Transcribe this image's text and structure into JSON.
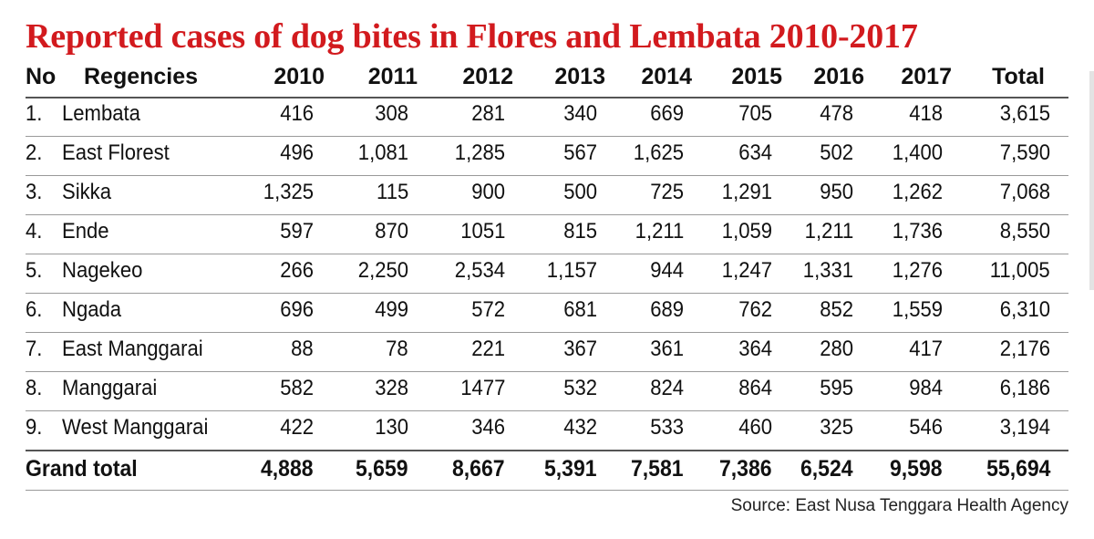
{
  "title": "Reported cases of dog bites in Flores and Lembata 2010-2017",
  "headers": [
    "No",
    "Regencies",
    "2010",
    "2011",
    "2012",
    "2013",
    "2014",
    "2015",
    "2016",
    "2017",
    "Total"
  ],
  "rows": [
    [
      "1.",
      "Lembata",
      "416",
      "308",
      "281",
      "340",
      "669",
      "705",
      "478",
      "418",
      "3,615"
    ],
    [
      "2.",
      "East Florest",
      "496",
      "1,081",
      "1,285",
      "567",
      "1,625",
      "634",
      "502",
      "1,400",
      "7,590"
    ],
    [
      "3.",
      "Sikka",
      "1,325",
      "115",
      "900",
      "500",
      "725",
      "1,291",
      "950",
      "1,262",
      "7,068"
    ],
    [
      "4.",
      "Ende",
      "597",
      "870",
      "1051",
      "815",
      "1,211",
      "1,059",
      "1,211",
      "1,736",
      "8,550"
    ],
    [
      "5.",
      "Nagekeo",
      "266",
      "2,250",
      "2,534",
      "1,157",
      "944",
      "1,247",
      "1,331",
      "1,276",
      "11,005"
    ],
    [
      "6.",
      "Ngada",
      "696",
      "499",
      "572",
      "681",
      "689",
      "762",
      "852",
      "1,559",
      "6,310"
    ],
    [
      "7.",
      "East Manggarai",
      "88",
      "78",
      "221",
      "367",
      "361",
      "364",
      "280",
      "417",
      "2,176"
    ],
    [
      "8.",
      "Manggarai",
      "582",
      "328",
      "1477",
      "532",
      "824",
      "864",
      "595",
      "984",
      "6,186"
    ],
    [
      "9.",
      "West Manggarai",
      "422",
      "130",
      "346",
      "432",
      "533",
      "460",
      "325",
      "546",
      "3,194"
    ]
  ],
  "grand_total": [
    "Grand total",
    "4,888",
    "5,659",
    "8,667",
    "5,391",
    "7,581",
    "7,386",
    "6,524",
    "9,598",
    "55,694"
  ],
  "source": "Source: East Nusa Tenggara Health Agency"
}
